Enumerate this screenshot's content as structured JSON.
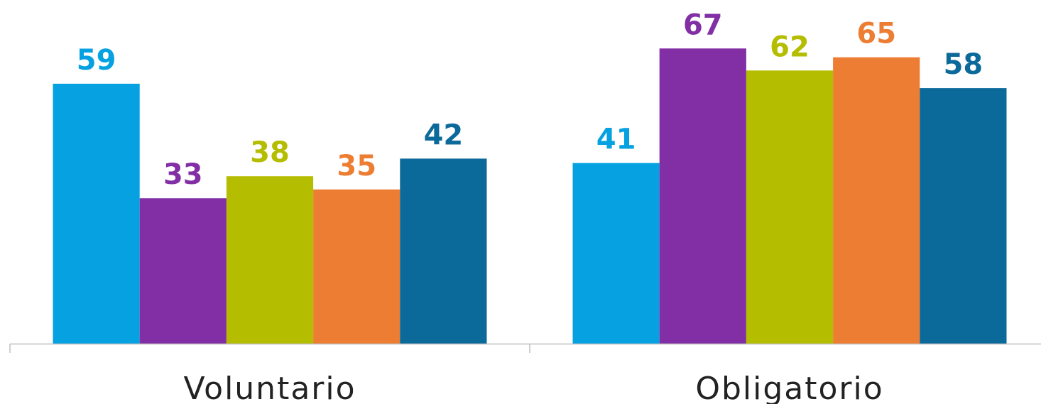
{
  "chart_data": {
    "type": "bar",
    "categories": [
      "Voluntario",
      "Obligatorio"
    ],
    "series": [
      {
        "color": "#05a1e1",
        "values": [
          59,
          41
        ]
      },
      {
        "color": "#822fa6",
        "values": [
          33,
          67
        ]
      },
      {
        "color": "#b5bd00",
        "values": [
          38,
          62
        ]
      },
      {
        "color": "#ed7d33",
        "values": [
          35,
          65
        ]
      },
      {
        "color": "#0c6a9b",
        "values": [
          42,
          58
        ]
      }
    ],
    "ylim": [
      0,
      78
    ],
    "grid": false
  }
}
